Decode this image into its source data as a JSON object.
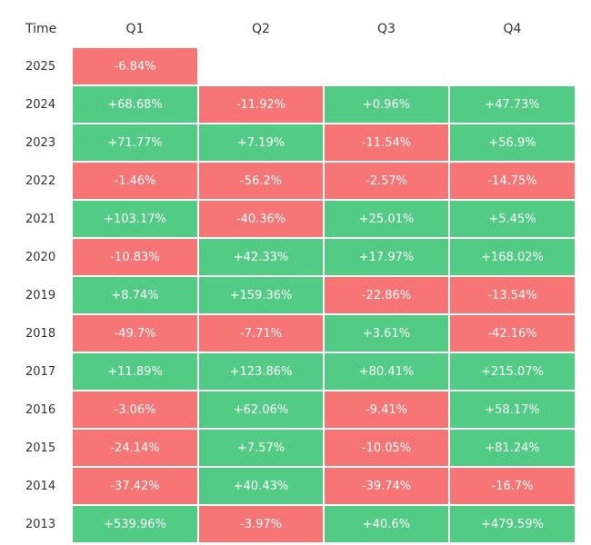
{
  "table": {
    "header": [
      "Time",
      "Q1",
      "Q2",
      "Q3",
      "Q4"
    ],
    "rows": [
      [
        "2025",
        "-6.84%"
      ],
      [
        "2024",
        "+68.68%",
        "-11.92%",
        "+0.96%",
        "+47.73%"
      ],
      [
        "2023",
        "+71.77%",
        "+7.19%",
        "-11.54%",
        "+56.9%"
      ],
      [
        "2022",
        "-1.46%",
        "-56.2%",
        "-2.57%",
        "-14.75%"
      ],
      [
        "2021",
        "+103.17%",
        "-40.36%",
        "+25.01%",
        "+5.45%"
      ],
      [
        "2020",
        "-10.83%",
        "+42.33%",
        "+17.97%",
        "+168.02%"
      ],
      [
        "2019",
        "+8.74%",
        "+159.36%",
        "-22.86%",
        "-13.54%"
      ],
      [
        "2018",
        "-49.7%",
        "-7.71%",
        "+3.61%",
        "-42.16%"
      ],
      [
        "2017",
        "+11.89%",
        "+123.86%",
        "+80.41%",
        "+215.07%"
      ],
      [
        "2016",
        "-3.06%",
        "+62.06%",
        "-9.41%",
        "+58.17%"
      ],
      [
        "2015",
        "-24.14%",
        "+7.57%",
        "-10.05%",
        "+81.24%"
      ],
      [
        "2014",
        "-37.42%",
        "+40.43%",
        "-39.74%",
        "-16.7%"
      ],
      [
        "2013",
        "+539.96%",
        "-3.97%",
        "+40.6%",
        "+479.59%"
      ]
    ]
  }
}
